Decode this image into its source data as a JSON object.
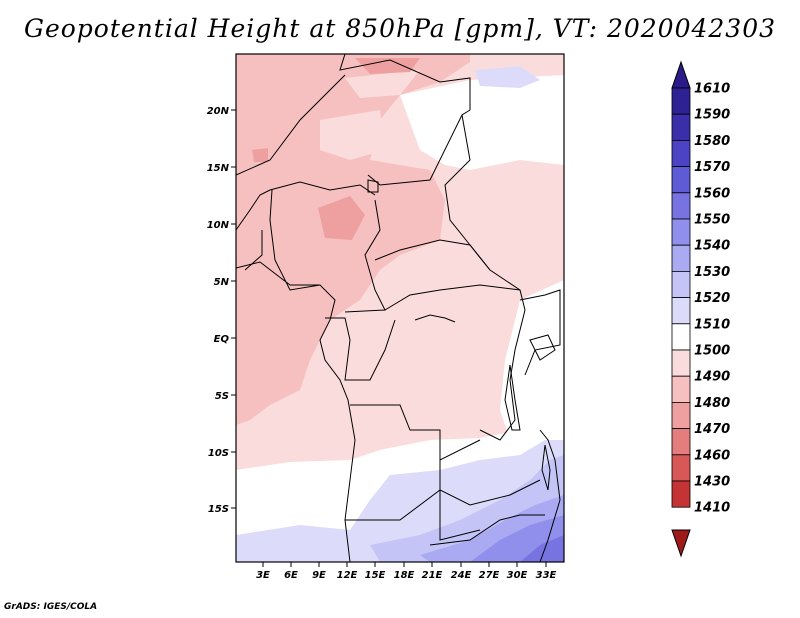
{
  "title": "Geopotential Height at 850hPa [gpm], VT: 2020042303",
  "footer": "GrADS: IGES/COLA",
  "map": {
    "lat_labels": [
      "20N",
      "15N",
      "10N",
      "5N",
      "EQ",
      "5S",
      "10S",
      "15S"
    ],
    "lon_labels": [
      "3E",
      "6E",
      "9E",
      "12E",
      "15E",
      "18E",
      "21E",
      "24E",
      "27E",
      "30E",
      "33E"
    ]
  },
  "colorbar": {
    "levels": [
      "1610",
      "1590",
      "1580",
      "1570",
      "1560",
      "1550",
      "1540",
      "1530",
      "1520",
      "1510",
      "1500",
      "1490",
      "1480",
      "1470",
      "1460",
      "1430",
      "1410"
    ],
    "colors": {
      "top_triangle": "#2a1a8a",
      "bands": [
        "#2d2194",
        "#3a2fa8",
        "#4b43c4",
        "#5f5ad6",
        "#7774e2",
        "#918fec",
        "#aaaaf2",
        "#c4c4f6",
        "#dcdcfa",
        "#ffffff",
        "#fbdcdc",
        "#f6c0c0",
        "#eea0a0",
        "#e47e7e",
        "#d85858",
        "#c43434",
        "#ae1e1e"
      ],
      "bottom_triangle": "#a01a1a"
    }
  }
}
